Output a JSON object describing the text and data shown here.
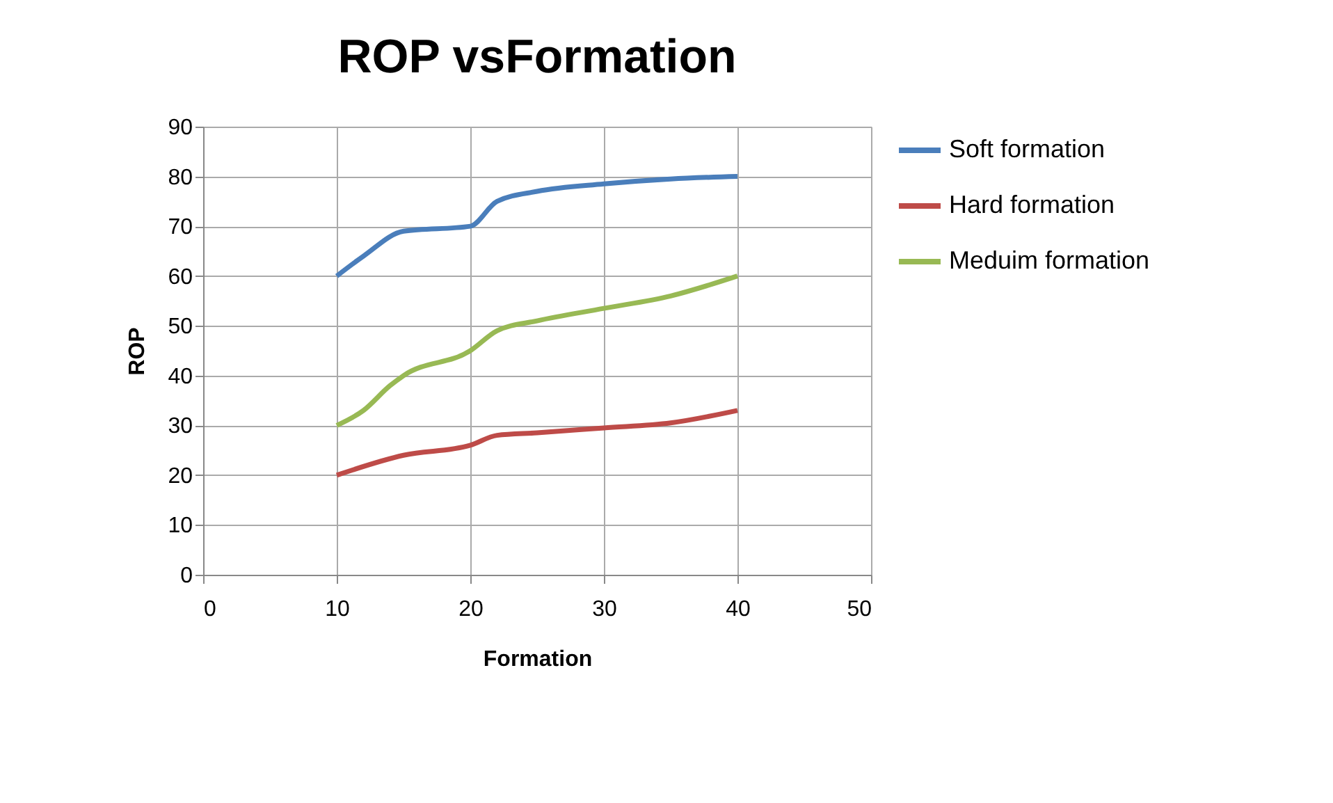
{
  "chart_data": {
    "type": "line",
    "title": "ROP vsFormation",
    "xlabel": "Formation",
    "ylabel": "ROP",
    "xlim": [
      0,
      50
    ],
    "xticks": [
      0,
      10,
      20,
      30,
      40,
      50
    ],
    "ylim": [
      0,
      90
    ],
    "yticks": [
      0,
      10,
      20,
      30,
      40,
      50,
      60,
      70,
      80,
      90
    ],
    "grid": true,
    "legend": "right",
    "marker": "none",
    "line_style": "solid",
    "series": [
      {
        "name": "Soft formation",
        "color": "#4a7ebb",
        "x": [
          10,
          12,
          15,
          20,
          22,
          25,
          30,
          35,
          40
        ],
        "values": [
          60,
          64,
          69,
          70,
          75,
          77,
          78.5,
          79.5,
          80
        ]
      },
      {
        "name": "Hard formation",
        "color": "#be4b48",
        "x": [
          10,
          15,
          20,
          22,
          25,
          30,
          35,
          40
        ],
        "values": [
          20,
          24,
          26,
          28,
          28.5,
          29.5,
          30.5,
          33
        ]
      },
      {
        "name": "Meduim formation",
        "color": "#98b954",
        "x": [
          10,
          12,
          14,
          15,
          20,
          22,
          25,
          30,
          35,
          40
        ],
        "values": [
          30,
          33,
          38,
          40,
          45,
          49,
          51,
          53.5,
          56,
          60
        ]
      }
    ]
  }
}
